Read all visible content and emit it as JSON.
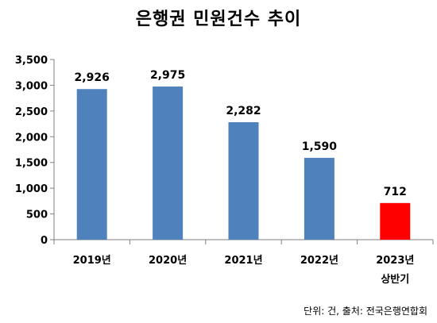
{
  "chart_data": {
    "type": "bar",
    "title": "은행권 민원건수 추이",
    "categories": [
      [
        "2019년"
      ],
      [
        "2020년"
      ],
      [
        "2021년"
      ],
      [
        "2022년"
      ],
      [
        "2023년",
        "상반기"
      ]
    ],
    "values": [
      2926,
      2975,
      2282,
      1590,
      712
    ],
    "value_labels": [
      "2,926",
      "2,975",
      "2,282",
      "1,590",
      "712"
    ],
    "bar_colors": [
      "#4F81BD",
      "#4F81BD",
      "#4F81BD",
      "#4F81BD",
      "#FF0000"
    ],
    "ylim": [
      0,
      3500
    ],
    "yticks": [
      0,
      500,
      1000,
      1500,
      2000,
      2500,
      3000,
      3500
    ],
    "ytick_labels": [
      "0",
      "500",
      "1,000",
      "1,500",
      "2,000",
      "2,500",
      "3,000",
      "3,500"
    ],
    "grid": false,
    "legend": "none"
  },
  "note": "단위: 건, 출처: 전국은행연합회"
}
